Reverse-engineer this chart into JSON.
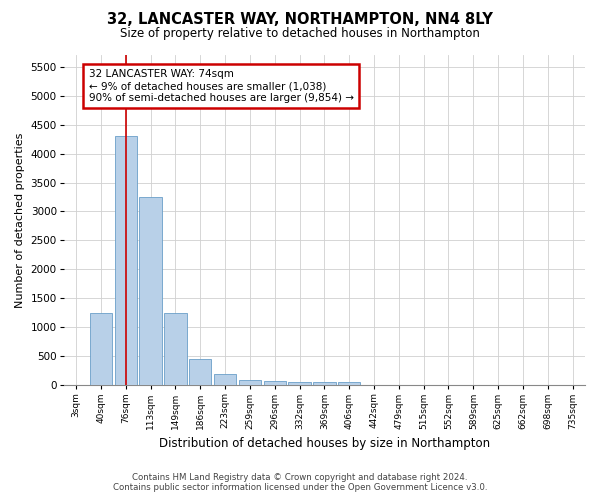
{
  "title1": "32, LANCASTER WAY, NORTHAMPTON, NN4 8LY",
  "title2": "Size of property relative to detached houses in Northampton",
  "xlabel": "Distribution of detached houses by size in Northampton",
  "ylabel": "Number of detached properties",
  "categories": [
    "3sqm",
    "40sqm",
    "76sqm",
    "113sqm",
    "149sqm",
    "186sqm",
    "223sqm",
    "259sqm",
    "296sqm",
    "332sqm",
    "369sqm",
    "406sqm",
    "442sqm",
    "479sqm",
    "515sqm",
    "552sqm",
    "589sqm",
    "625sqm",
    "662sqm",
    "698sqm",
    "735sqm"
  ],
  "values": [
    0,
    1250,
    4300,
    3250,
    1250,
    450,
    200,
    100,
    80,
    60,
    50,
    50,
    0,
    0,
    0,
    0,
    0,
    0,
    0,
    0,
    0
  ],
  "bar_color": "#b8d0e8",
  "bar_edge_color": "#6a9fc8",
  "marker_index": 2,
  "marker_color": "#cc0000",
  "annotation_text": "32 LANCASTER WAY: 74sqm\n← 9% of detached houses are smaller (1,038)\n90% of semi-detached houses are larger (9,854) →",
  "annotation_box_color": "#ffffff",
  "annotation_box_edge_color": "#cc0000",
  "ylim": [
    0,
    5700
  ],
  "yticks": [
    0,
    500,
    1000,
    1500,
    2000,
    2500,
    3000,
    3500,
    4000,
    4500,
    5000,
    5500
  ],
  "footer1": "Contains HM Land Registry data © Crown copyright and database right 2024.",
  "footer2": "Contains public sector information licensed under the Open Government Licence v3.0.",
  "bg_color": "#ffffff",
  "grid_color": "#d0d0d0"
}
